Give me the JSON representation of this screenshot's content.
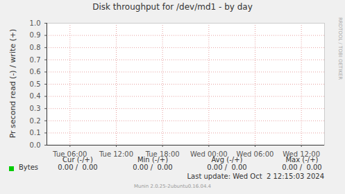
{
  "chart_data": {
    "type": "line",
    "title": "Disk throughput for /dev/md1 - by day",
    "y_label": "Pr second read (-) / write (+)",
    "x": [
      3,
      6,
      9,
      12,
      15,
      18,
      21,
      24,
      27,
      30,
      33,
      36,
      39
    ],
    "series": [
      {
        "name": "Bytes",
        "color": "#00cc00",
        "values": [
          0,
          0,
          0,
          0,
          0,
          0,
          0,
          0,
          0,
          0,
          0,
          0,
          0
        ]
      }
    ],
    "xlim": [
      3,
      39
    ],
    "xticks": [
      {
        "value": 6,
        "label": "Tue 06:00"
      },
      {
        "value": 12,
        "label": "Tue 12:00"
      },
      {
        "value": 18,
        "label": "Tue 18:00"
      },
      {
        "value": 24,
        "label": "Wed 00:00"
      },
      {
        "value": 30,
        "label": "Wed 06:00"
      },
      {
        "value": 36,
        "label": "Wed 12:00"
      }
    ],
    "ylim": [
      0,
      1
    ],
    "yticks": [
      {
        "value": 0,
        "label": "0.0"
      },
      {
        "value": 0.1,
        "label": "0.1"
      },
      {
        "value": 0.2,
        "label": "0.2"
      },
      {
        "value": 0.3,
        "label": "0.3"
      },
      {
        "value": 0.4,
        "label": "0.4"
      },
      {
        "value": 0.5,
        "label": "0.5"
      },
      {
        "value": 0.6,
        "label": "0.6"
      },
      {
        "value": 0.7,
        "label": "0.7"
      },
      {
        "value": 0.8,
        "label": "0.8"
      },
      {
        "value": 0.9,
        "label": "0.9"
      },
      {
        "value": 1,
        "label": "1.0"
      }
    ],
    "grid": true
  },
  "legend_table": {
    "headers": [
      "Cur (-/+)",
      "Min (-/+)",
      "Avg (-/+)",
      "Max (-/+)"
    ],
    "rows": [
      {
        "name": "Bytes",
        "cells": [
          "0.00 /  0.00",
          "0.00 /  0.00",
          "0.00 /  0.00",
          "0.00 /  0.00"
        ]
      }
    ]
  },
  "last_update": "Last update: Wed Oct  2 12:15:03 2024",
  "side_label": "RRDTOOL / TOBI OETIKER",
  "footer": "Munin 2.0.25-2ubuntu0.16.04.4"
}
